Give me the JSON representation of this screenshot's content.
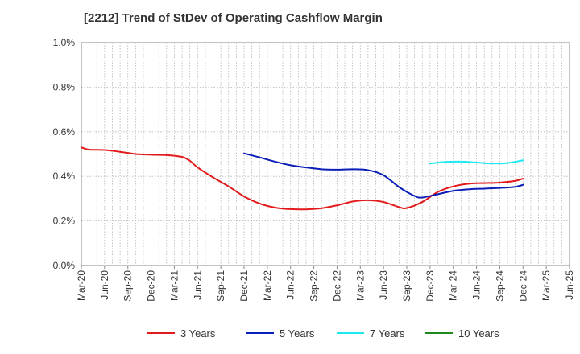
{
  "chart_data": {
    "type": "line",
    "title": "[2212]  Trend of StDev of Operating Cashflow Margin",
    "xlabel": "",
    "ylabel": "",
    "ylim": [
      0,
      1.0
    ],
    "y_ticks": [
      "0.0%",
      "0.2%",
      "0.4%",
      "0.6%",
      "0.8%",
      "1.0%"
    ],
    "x_ticks": [
      "Mar-20",
      "Jun-20",
      "Sep-20",
      "Dec-20",
      "Mar-21",
      "Jun-21",
      "Sep-21",
      "Dec-21",
      "Mar-22",
      "Jun-22",
      "Sep-22",
      "Dec-22",
      "Mar-23",
      "Jun-23",
      "Sep-23",
      "Dec-23",
      "Mar-24",
      "Jun-24",
      "Sep-24",
      "Dec-24",
      "Mar-25",
      "Jun-25"
    ],
    "grid": true,
    "legend_position": "bottom",
    "series": [
      {
        "name": "3 Years",
        "color": "#e31a1c",
        "points": [
          [
            "Mar-20",
            0.53
          ],
          [
            "Apr-20",
            0.52
          ],
          [
            "Jun-20",
            0.518
          ],
          [
            "Aug-20",
            0.51
          ],
          [
            "Oct-20",
            0.5
          ],
          [
            "Dec-20",
            0.497
          ],
          [
            "Feb-21",
            0.495
          ],
          [
            "Apr-21",
            0.487
          ],
          [
            "May-21",
            0.47
          ],
          [
            "Jun-21",
            0.44
          ],
          [
            "Aug-21",
            0.395
          ],
          [
            "Oct-21",
            0.355
          ],
          [
            "Dec-21",
            0.31
          ],
          [
            "Feb-22",
            0.278
          ],
          [
            "Apr-22",
            0.26
          ],
          [
            "Jun-22",
            0.253
          ],
          [
            "Aug-22",
            0.252
          ],
          [
            "Oct-22",
            0.257
          ],
          [
            "Dec-22",
            0.27
          ],
          [
            "Feb-23",
            0.287
          ],
          [
            "Apr-23",
            0.293
          ],
          [
            "Jun-23",
            0.285
          ],
          [
            "Aug-23",
            0.262
          ],
          [
            "Sep-23",
            0.258
          ],
          [
            "Nov-23",
            0.285
          ],
          [
            "Jan-24",
            0.33
          ],
          [
            "Mar-24",
            0.355
          ],
          [
            "May-24",
            0.367
          ],
          [
            "Jul-24",
            0.37
          ],
          [
            "Sep-24",
            0.372
          ],
          [
            "Nov-24",
            0.38
          ],
          [
            "Dec-24",
            0.39
          ]
        ]
      },
      {
        "name": "5 Years",
        "color": "#0b1fb8",
        "points": [
          [
            "Dec-21",
            0.503
          ],
          [
            "Feb-22",
            0.485
          ],
          [
            "Apr-22",
            0.466
          ],
          [
            "Jun-22",
            0.45
          ],
          [
            "Aug-22",
            0.44
          ],
          [
            "Oct-22",
            0.432
          ],
          [
            "Dec-22",
            0.43
          ],
          [
            "Feb-23",
            0.432
          ],
          [
            "Apr-23",
            0.428
          ],
          [
            "Jun-23",
            0.405
          ],
          [
            "Aug-23",
            0.352
          ],
          [
            "Oct-23",
            0.312
          ],
          [
            "Nov-23",
            0.305
          ],
          [
            "Jan-24",
            0.32
          ],
          [
            "Mar-24",
            0.335
          ],
          [
            "May-24",
            0.342
          ],
          [
            "Jul-24",
            0.345
          ],
          [
            "Sep-24",
            0.348
          ],
          [
            "Nov-24",
            0.353
          ],
          [
            "Dec-24",
            0.362
          ]
        ]
      },
      {
        "name": "7 Years",
        "color": "#1de8f0",
        "points": [
          [
            "Dec-23",
            0.458
          ],
          [
            "Feb-24",
            0.465
          ],
          [
            "Apr-24",
            0.466
          ],
          [
            "Jun-24",
            0.462
          ],
          [
            "Aug-24",
            0.458
          ],
          [
            "Oct-24",
            0.46
          ],
          [
            "Dec-24",
            0.472
          ]
        ]
      },
      {
        "name": "10 Years",
        "color": "#1e8a1e",
        "points": []
      }
    ]
  }
}
